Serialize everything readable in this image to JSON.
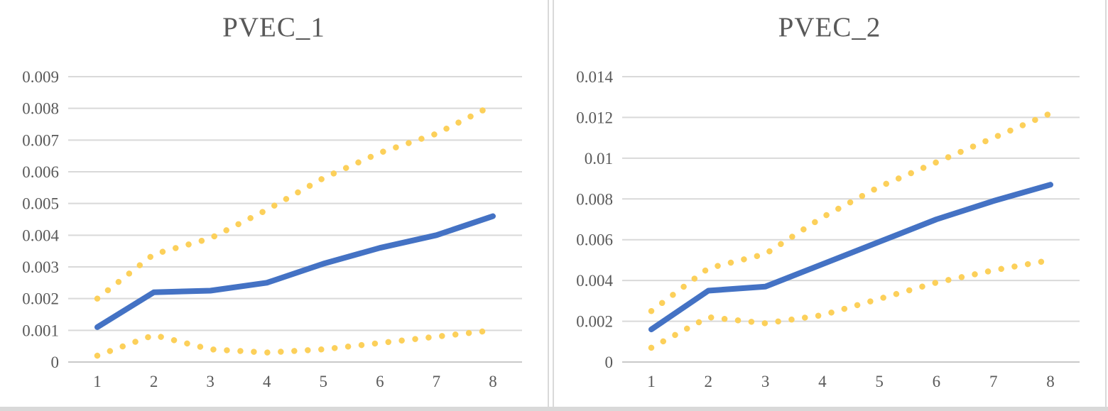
{
  "page": {
    "background_color": "#FFFFFF",
    "panel_border_color": "#D9D9D9",
    "bottom_bar_color": "#D9D9D9",
    "gridline_color": "#D9D9D9",
    "zero_line_color": "#C9C9C9",
    "tick_text_color": "#595959",
    "title_text_color": "#595959",
    "accent_blue": "#4472C4",
    "accent_gold": "#FCD05A"
  },
  "chart_data": [
    {
      "type": "line",
      "title": "PVEC_1",
      "xlabel": "",
      "ylabel": "",
      "grid": true,
      "legend": "none",
      "x": [
        1,
        2,
        3,
        4,
        5,
        6,
        7,
        8
      ],
      "categories": [
        "1",
        "2",
        "3",
        "4",
        "5",
        "6",
        "7",
        "8"
      ],
      "ylim": [
        0,
        0.009
      ],
      "ytick_step": 0.001,
      "yticklabels": [
        "0",
        "0.001",
        "0.002",
        "0.003",
        "0.004",
        "0.005",
        "0.006",
        "0.007",
        "0.008",
        "0.009"
      ],
      "series": [
        {
          "name": "mean",
          "style": "solid",
          "color": "#4472C4",
          "values": [
            0.0011,
            0.0022,
            0.00225,
            0.0025,
            0.0031,
            0.0036,
            0.004,
            0.0046
          ]
        },
        {
          "name": "upper-band",
          "style": "dotted",
          "color": "#FCD05A",
          "values": [
            0.002,
            0.0034,
            0.0039,
            0.0048,
            0.0058,
            0.0066,
            0.0072,
            0.0081
          ]
        },
        {
          "name": "lower-band",
          "style": "dotted",
          "color": "#FCD05A",
          "values": [
            0.0002,
            0.00085,
            0.0004,
            0.0003,
            0.0004,
            0.0006,
            0.0008,
            0.001
          ]
        }
      ]
    },
    {
      "type": "line",
      "title": "PVEC_2",
      "xlabel": "",
      "ylabel": "",
      "grid": true,
      "legend": "none",
      "x": [
        1,
        2,
        3,
        4,
        5,
        6,
        7,
        8
      ],
      "categories": [
        "1",
        "2",
        "3",
        "4",
        "5",
        "6",
        "7",
        "8"
      ],
      "ylim": [
        0,
        0.014
      ],
      "ytick_step": 0.002,
      "yticklabels": [
        "0",
        "0.002",
        "0.004",
        "0.006",
        "0.008",
        "0.01",
        "0.012",
        "0.014"
      ],
      "series": [
        {
          "name": "mean",
          "style": "solid",
          "color": "#4472C4",
          "values": [
            0.0016,
            0.0035,
            0.0037,
            0.0048,
            0.0059,
            0.007,
            0.0079,
            0.0087
          ]
        },
        {
          "name": "upper-band",
          "style": "dotted",
          "color": "#FCD05A",
          "values": [
            0.0025,
            0.0046,
            0.0053,
            0.0071,
            0.0086,
            0.0098,
            0.011,
            0.0122
          ]
        },
        {
          "name": "lower-band",
          "style": "dotted",
          "color": "#FCD05A",
          "values": [
            0.0007,
            0.0022,
            0.0019,
            0.0023,
            0.0031,
            0.0039,
            0.0045,
            0.005
          ]
        }
      ]
    }
  ]
}
